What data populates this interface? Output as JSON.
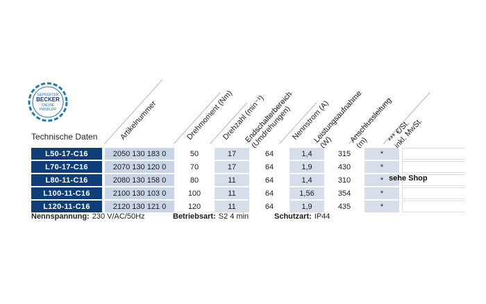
{
  "logo": {
    "line1": "GEPRÜFTER",
    "line2": "BECKER",
    "line3": "ONLINE",
    "line4": "HÄNDLER"
  },
  "table_title": "Technische Daten",
  "headers": [
    {
      "text": "Artikelnummer"
    },
    {
      "text": "Drehmoment (Nm)"
    },
    {
      "text": "Drehzahl (min⁻¹)"
    },
    {
      "text": "Endschalterbereich\n(Umdrehungen)"
    },
    {
      "text": "Nennstrom (A)"
    },
    {
      "text": "Leistungsaufnahme\n(W)"
    },
    {
      "text": "Anschlussleitung\n(m)"
    },
    {
      "text": "*** €/St.\ninkl. MwSt."
    }
  ],
  "rows": [
    {
      "model": "L50-17-C16",
      "article": "2050 130 183 0",
      "torque": "50",
      "speed": "17",
      "limit": "64",
      "current": "1,4",
      "power": "315",
      "cable": "*"
    },
    {
      "model": "L70-17-C16",
      "article": "2070 130 120 0",
      "torque": "70",
      "speed": "17",
      "limit": "64",
      "current": "1,9",
      "power": "430",
      "cable": "*"
    },
    {
      "model": "L80-11-C16",
      "article": "2080 130 158 0",
      "torque": "80",
      "speed": "11",
      "limit": "64",
      "current": "1,4",
      "power": "310",
      "cable": "*"
    },
    {
      "model": "L100-11-C16",
      "article": "2100 130 103 0",
      "torque": "100",
      "speed": "11",
      "limit": "64",
      "current": "1,56",
      "power": "354",
      "cable": "*"
    },
    {
      "model": "L120-11-C16",
      "article": "2120 130 121 0",
      "torque": "120",
      "speed": "11",
      "limit": "64",
      "current": "1,9",
      "power": "435",
      "cable": "*"
    }
  ],
  "price_note": "sehe Shop",
  "footer": {
    "voltage_label": "Nennspannung:",
    "voltage_value": "230 V/AC/50Hz",
    "mode_label": "Betriebsart:",
    "mode_value": "S2 4 min",
    "protection_label": "Schutzart:",
    "protection_value": "IP44"
  },
  "colors": {
    "model_bg": "#0f3d7a",
    "article_bg": "#c9d4e6",
    "shade_bg": "#d6deeb"
  }
}
